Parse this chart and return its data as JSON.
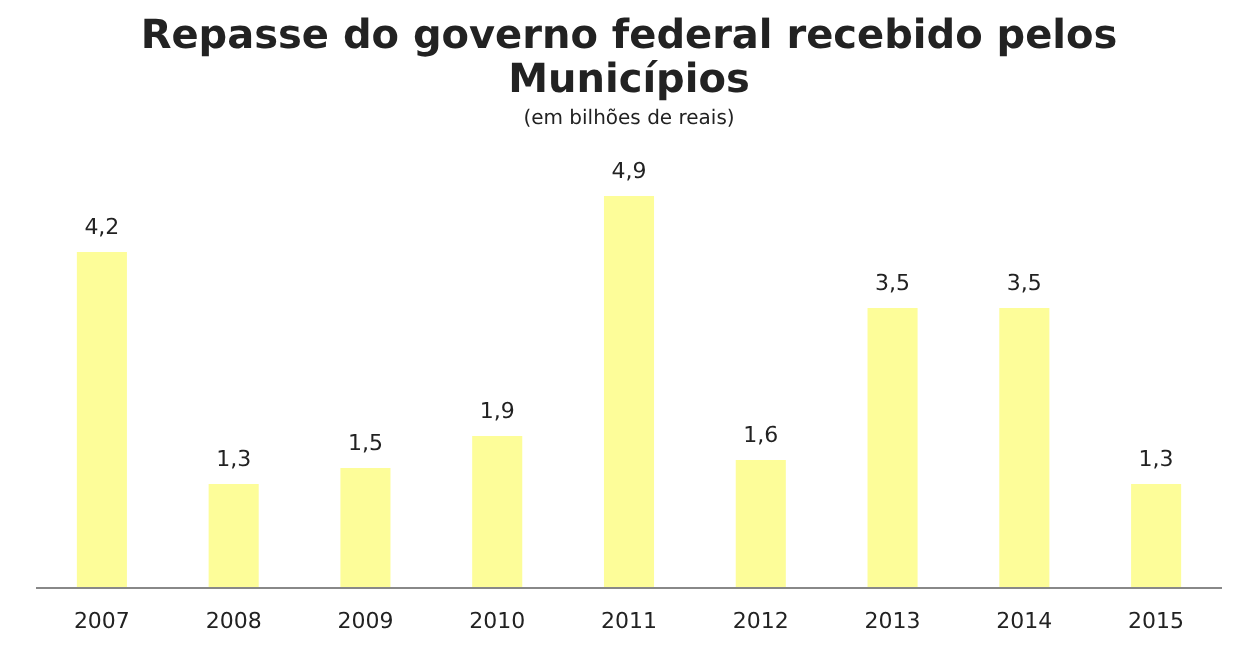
{
  "chart_data": {
    "type": "bar",
    "title": "Repasse do governo federal recebido pelos Municípios",
    "subtitle": "(em bilhões de reais)",
    "categories": [
      "2007",
      "2008",
      "2009",
      "2010",
      "2011",
      "2012",
      "2013",
      "2014",
      "2015"
    ],
    "values": [
      4.2,
      1.3,
      1.5,
      1.9,
      4.9,
      1.6,
      3.5,
      3.5,
      1.3
    ],
    "value_labels": [
      "4,2",
      "1,3",
      "1,5",
      "1,9",
      "4,9",
      "1,6",
      "3,5",
      "3,5",
      "1,3"
    ],
    "color": "#fdfd99",
    "grid": false
  }
}
